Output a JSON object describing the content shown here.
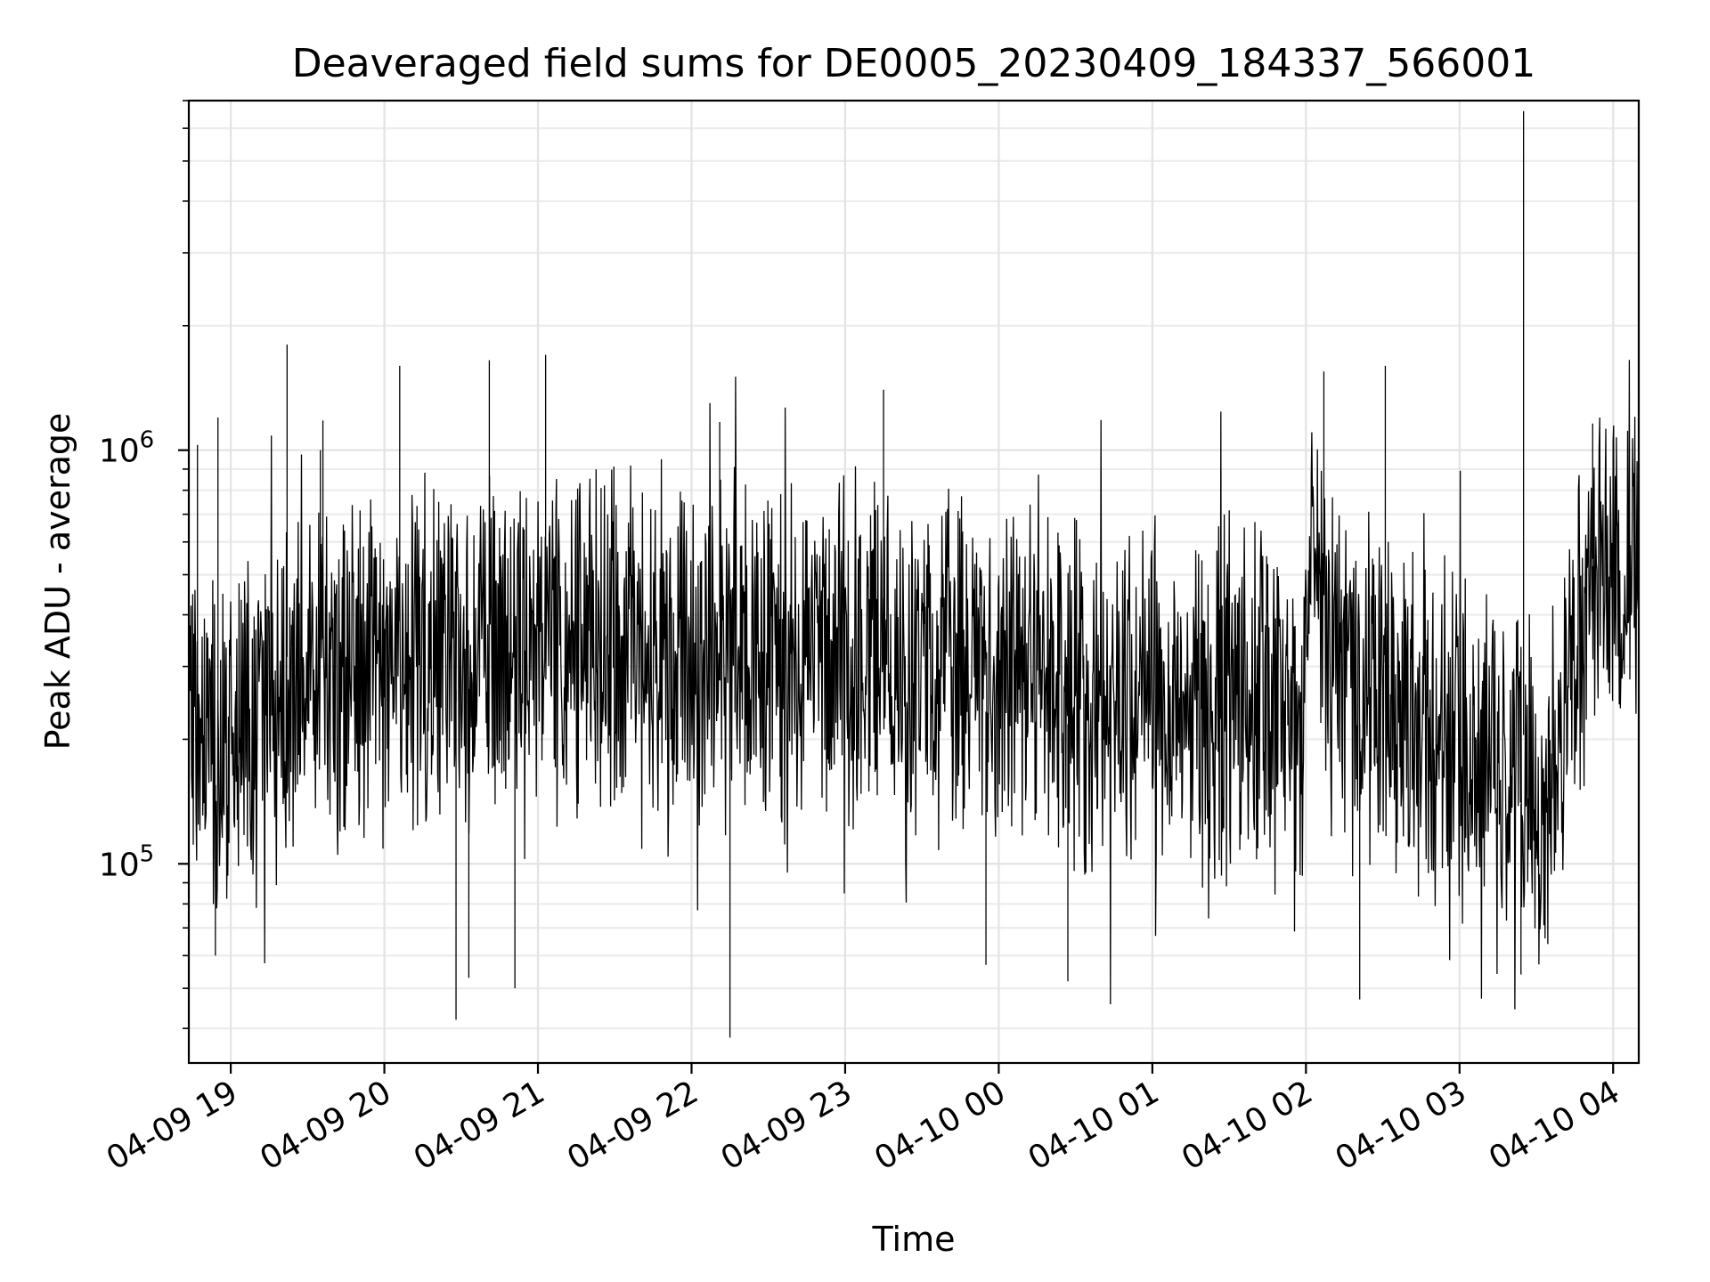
{
  "chart_data": {
    "type": "line",
    "title": "Deaveraged field sums for DE0005_20230409_184337_566001",
    "xlabel": "Time",
    "ylabel": "Peak ADU - average",
    "y_scale": "log",
    "ylim": [
      33000,
      7000000
    ],
    "xlim": [
      "2023-04-09 18:43:37",
      "2023-04-10 04:10:00"
    ],
    "grid": true,
    "x_tick_labels": [
      "04-09 19",
      "04-09 20",
      "04-09 21",
      "04-09 22",
      "04-09 23",
      "04-10 00",
      "04-10 01",
      "04-10 02",
      "04-10 03",
      "04-10 04"
    ],
    "y_tick_labels": [
      {
        "base": "10",
        "exp": "5",
        "value": 100000
      },
      {
        "base": "10",
        "exp": "6",
        "value": 1000000
      }
    ],
    "series": [
      {
        "color": "#000000",
        "baseline_points": [
          [
            "2023-04-09 18:44",
            200000
          ],
          [
            "2023-04-09 19:00",
            190000
          ],
          [
            "2023-04-09 19:20",
            260000
          ],
          [
            "2023-04-09 19:40",
            300000
          ],
          [
            "2023-04-09 20:00",
            320000
          ],
          [
            "2023-04-09 20:30",
            330000
          ],
          [
            "2023-04-09 21:00",
            340000
          ],
          [
            "2023-04-09 21:30",
            340000
          ],
          [
            "2023-04-09 22:00",
            330000
          ],
          [
            "2023-04-09 22:30",
            330000
          ],
          [
            "2023-04-09 23:00",
            320000
          ],
          [
            "2023-04-09 23:30",
            300000
          ],
          [
            "2023-04-10 00:00",
            290000
          ],
          [
            "2023-04-10 00:30",
            270000
          ],
          [
            "2023-04-10 01:00",
            250000
          ],
          [
            "2023-04-10 01:30",
            240000
          ],
          [
            "2023-04-10 02:00",
            240000
          ],
          [
            "2023-04-10 02:03",
            600000
          ],
          [
            "2023-04-10 02:08",
            330000
          ],
          [
            "2023-04-10 02:15",
            280000
          ],
          [
            "2023-04-10 02:30",
            260000
          ],
          [
            "2023-04-10 02:45",
            200000
          ],
          [
            "2023-04-10 03:00",
            190000
          ],
          [
            "2023-04-10 03:20",
            190000
          ],
          [
            "2023-04-10 03:28",
            160000
          ],
          [
            "2023-04-10 03:33",
            120000
          ],
          [
            "2023-04-10 03:38",
            190000
          ],
          [
            "2023-04-10 03:45",
            300000
          ],
          [
            "2023-04-10 03:50",
            440000
          ],
          [
            "2023-04-10 04:00",
            520000
          ],
          [
            "2023-04-10 04:10",
            580000
          ]
        ],
        "spikes_up": [
          [
            "2023-04-09 18:47",
            1030000
          ],
          [
            "2023-04-09 18:55",
            1200000
          ],
          [
            "2023-04-09 19:22",
            1800000
          ],
          [
            "2023-04-09 19:35",
            1000000
          ],
          [
            "2023-04-09 19:36",
            1180000
          ],
          [
            "2023-04-09 20:06",
            1600000
          ],
          [
            "2023-04-09 20:41",
            1650000
          ],
          [
            "2023-04-09 21:03",
            1700000
          ],
          [
            "2023-04-09 22:11",
            1170000
          ],
          [
            "2023-04-09 23:15",
            1400000
          ],
          [
            "2023-04-10 02:07",
            1550000
          ],
          [
            "2023-04-10 02:31",
            1600000
          ],
          [
            "2023-04-10 03:25",
            6600000
          ],
          [
            "2023-04-10 03:52",
            1160000
          ]
        ],
        "spikes_down": [
          [
            "2023-04-09 18:54",
            60000
          ],
          [
            "2023-04-09 20:28",
            42000
          ],
          [
            "2023-04-09 20:33",
            53000
          ],
          [
            "2023-04-09 20:51",
            50000
          ],
          [
            "2023-04-09 22:15",
            38000
          ],
          [
            "2023-04-09 23:55",
            57000
          ],
          [
            "2023-04-10 00:27",
            52000
          ],
          [
            "2023-04-10 02:21",
            47000
          ],
          [
            "2023-04-10 03:24",
            54000
          ]
        ]
      }
    ]
  }
}
